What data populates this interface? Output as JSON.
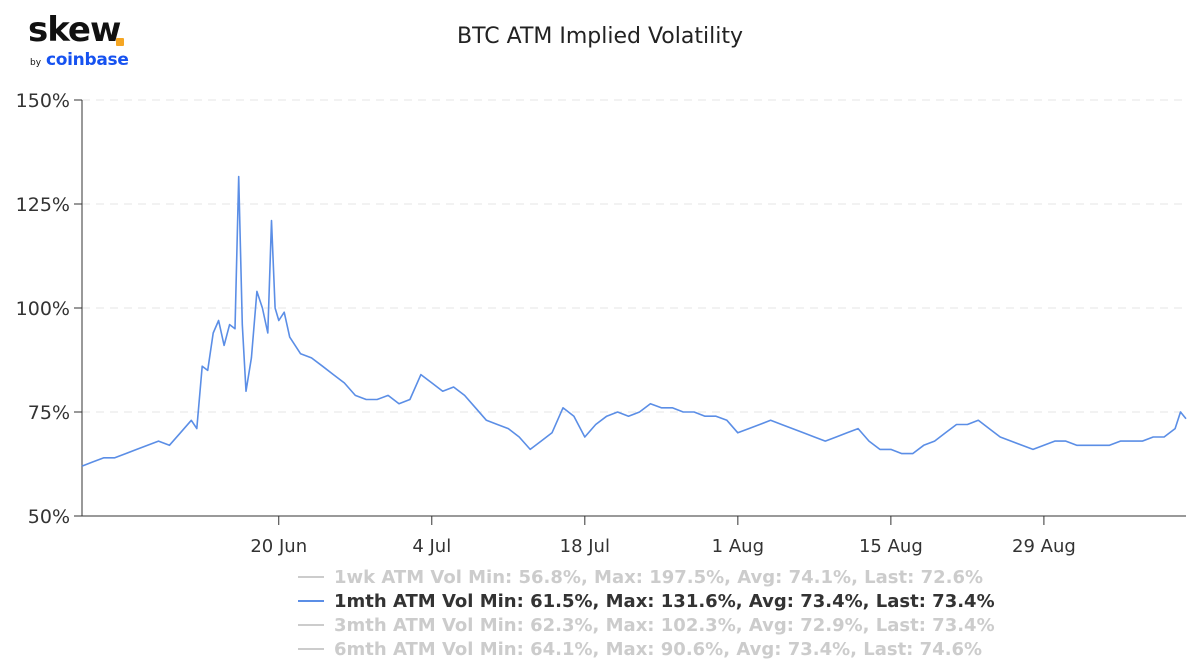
{
  "brand": {
    "name": "skew",
    "by": "by",
    "parent": "coinbase"
  },
  "colors": {
    "line": "#5b8ee6",
    "grid": "#e6e6e6",
    "axis": "#333333",
    "brand_dot": "#f5a623",
    "brand_blue": "#1652f0"
  },
  "chart_data": {
    "type": "line",
    "title": "BTC ATM Implied Volatility",
    "xlabel": "",
    "ylabel": "",
    "x_range": [
      "2021-06-02",
      "2021-09-11"
    ],
    "ylim": [
      50,
      150
    ],
    "yticks": [
      50,
      75,
      100,
      125,
      150
    ],
    "ytick_labels": [
      "50%",
      "75%",
      "100%",
      "125%",
      "150%"
    ],
    "xticks": [
      "2021-06-20",
      "2021-07-04",
      "2021-07-18",
      "2021-08-01",
      "2021-08-15",
      "2021-08-29"
    ],
    "xtick_labels": [
      "20 Jun",
      "4 Jul",
      "18 Jul",
      "1 Aug",
      "15 Aug",
      "29 Aug"
    ],
    "grid": true,
    "legend_position": "bottom",
    "series": [
      {
        "name": "1mth ATM Vol",
        "active": true,
        "points": [
          [
            "2021-06-02",
            62
          ],
          [
            "2021-06-03",
            63
          ],
          [
            "2021-06-04",
            64
          ],
          [
            "2021-06-05",
            64
          ],
          [
            "2021-06-06",
            65
          ],
          [
            "2021-06-07",
            66
          ],
          [
            "2021-06-08",
            67
          ],
          [
            "2021-06-09",
            68
          ],
          [
            "2021-06-10",
            67
          ],
          [
            "2021-06-11",
            70
          ],
          [
            "2021-06-12",
            73
          ],
          [
            "2021-06-12T12",
            71
          ],
          [
            "2021-06-13",
            86
          ],
          [
            "2021-06-13T12",
            85
          ],
          [
            "2021-06-14",
            94
          ],
          [
            "2021-06-14T12",
            97
          ],
          [
            "2021-06-15",
            91
          ],
          [
            "2021-06-15T12",
            96
          ],
          [
            "2021-06-16",
            95
          ],
          [
            "2021-06-16T08",
            131.6
          ],
          [
            "2021-06-16T16",
            96
          ],
          [
            "2021-06-17",
            80
          ],
          [
            "2021-06-17T12",
            88
          ],
          [
            "2021-06-18",
            104
          ],
          [
            "2021-06-18T12",
            100
          ],
          [
            "2021-06-19",
            94
          ],
          [
            "2021-06-19T08",
            121
          ],
          [
            "2021-06-19T16",
            100
          ],
          [
            "2021-06-20",
            97
          ],
          [
            "2021-06-20T12",
            99
          ],
          [
            "2021-06-21",
            93
          ],
          [
            "2021-06-22",
            89
          ],
          [
            "2021-06-23",
            88
          ],
          [
            "2021-06-24",
            86
          ],
          [
            "2021-06-25",
            84
          ],
          [
            "2021-06-26",
            82
          ],
          [
            "2021-06-27",
            79
          ],
          [
            "2021-06-28",
            78
          ],
          [
            "2021-06-29",
            78
          ],
          [
            "2021-06-30",
            79
          ],
          [
            "2021-07-01",
            77
          ],
          [
            "2021-07-02",
            78
          ],
          [
            "2021-07-03",
            84
          ],
          [
            "2021-07-04",
            82
          ],
          [
            "2021-07-05",
            80
          ],
          [
            "2021-07-06",
            81
          ],
          [
            "2021-07-07",
            79
          ],
          [
            "2021-07-08",
            76
          ],
          [
            "2021-07-09",
            73
          ],
          [
            "2021-07-10",
            72
          ],
          [
            "2021-07-11",
            71
          ],
          [
            "2021-07-12",
            69
          ],
          [
            "2021-07-13",
            66
          ],
          [
            "2021-07-14",
            68
          ],
          [
            "2021-07-15",
            70
          ],
          [
            "2021-07-16",
            76
          ],
          [
            "2021-07-17",
            74
          ],
          [
            "2021-07-18",
            69
          ],
          [
            "2021-07-19",
            72
          ],
          [
            "2021-07-20",
            74
          ],
          [
            "2021-07-21",
            75
          ],
          [
            "2021-07-22",
            74
          ],
          [
            "2021-07-23",
            75
          ],
          [
            "2021-07-24",
            77
          ],
          [
            "2021-07-25",
            76
          ],
          [
            "2021-07-26",
            76
          ],
          [
            "2021-07-27",
            75
          ],
          [
            "2021-07-28",
            75
          ],
          [
            "2021-07-29",
            74
          ],
          [
            "2021-07-30",
            74
          ],
          [
            "2021-07-31",
            73
          ],
          [
            "2021-08-01",
            70
          ],
          [
            "2021-08-02",
            71
          ],
          [
            "2021-08-03",
            72
          ],
          [
            "2021-08-04",
            73
          ],
          [
            "2021-08-05",
            72
          ],
          [
            "2021-08-06",
            71
          ],
          [
            "2021-08-07",
            70
          ],
          [
            "2021-08-08",
            69
          ],
          [
            "2021-08-09",
            68
          ],
          [
            "2021-08-10",
            69
          ],
          [
            "2021-08-11",
            70
          ],
          [
            "2021-08-12",
            71
          ],
          [
            "2021-08-13",
            68
          ],
          [
            "2021-08-14",
            66
          ],
          [
            "2021-08-15",
            66
          ],
          [
            "2021-08-16",
            65
          ],
          [
            "2021-08-17",
            65
          ],
          [
            "2021-08-18",
            67
          ],
          [
            "2021-08-19",
            68
          ],
          [
            "2021-08-20",
            70
          ],
          [
            "2021-08-21",
            72
          ],
          [
            "2021-08-22",
            72
          ],
          [
            "2021-08-23",
            73
          ],
          [
            "2021-08-24",
            71
          ],
          [
            "2021-08-25",
            69
          ],
          [
            "2021-08-26",
            68
          ],
          [
            "2021-08-27",
            67
          ],
          [
            "2021-08-28",
            66
          ],
          [
            "2021-08-29",
            67
          ],
          [
            "2021-08-30",
            68
          ],
          [
            "2021-08-31",
            68
          ],
          [
            "2021-09-01",
            67
          ],
          [
            "2021-09-02",
            67
          ],
          [
            "2021-09-03",
            67
          ],
          [
            "2021-09-04",
            67
          ],
          [
            "2021-09-05",
            68
          ],
          [
            "2021-09-06",
            68
          ],
          [
            "2021-09-07",
            68
          ],
          [
            "2021-09-08",
            69
          ],
          [
            "2021-09-09",
            69
          ],
          [
            "2021-09-10",
            71
          ],
          [
            "2021-09-10T12",
            75
          ],
          [
            "2021-09-11",
            73.4
          ]
        ]
      }
    ]
  },
  "legend": [
    {
      "name": "1wk ATM Vol",
      "stats": "Min: 56.8%, Max: 197.5%, Avg: 74.1%, Last: 72.6%",
      "active": false
    },
    {
      "name": "1mth ATM Vol",
      "stats": "Min: 61.5%, Max: 131.6%, Avg: 73.4%, Last: 73.4%",
      "active": true
    },
    {
      "name": "3mth ATM Vol",
      "stats": "Min: 62.3%, Max: 102.3%, Avg: 72.9%, Last: 73.4%",
      "active": false
    },
    {
      "name": "6mth ATM Vol",
      "stats": "Min: 64.1%, Max: 90.6%, Avg: 73.4%, Last: 74.6%",
      "active": false
    }
  ]
}
